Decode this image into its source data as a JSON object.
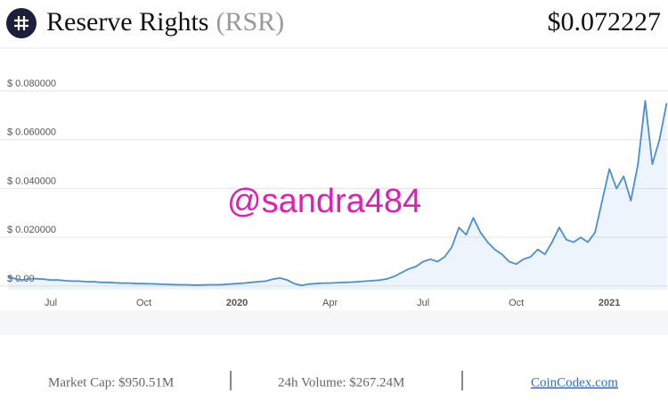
{
  "header": {
    "name": "Reserve Rights",
    "symbol": "(RSR)",
    "price": "$0.072227"
  },
  "chart_data": {
    "type": "line",
    "color": "#4a8fd4",
    "grid": true,
    "categories": [
      null,
      null,
      null,
      null,
      null,
      null,
      "Jul",
      null,
      null,
      null,
      null,
      null,
      null,
      null,
      null,
      null,
      null,
      null,
      null,
      "Oct",
      null,
      null,
      null,
      null,
      null,
      null,
      null,
      null,
      null,
      null,
      null,
      null,
      "2020",
      null,
      null,
      null,
      null,
      null,
      null,
      null,
      null,
      null,
      null,
      null,
      null,
      "Apr",
      null,
      null,
      null,
      null,
      null,
      null,
      null,
      null,
      null,
      null,
      null,
      null,
      "Jul",
      null,
      null,
      null,
      null,
      null,
      null,
      null,
      null,
      null,
      null,
      null,
      null,
      "Oct",
      null,
      null,
      null,
      null,
      null,
      null,
      null,
      null,
      null,
      null,
      null,
      null,
      "2021",
      null,
      null,
      null,
      null,
      null,
      null,
      null,
      null
    ],
    "values": [
      0.004,
      0.003,
      0.0025,
      0.003,
      0.003,
      0.0028,
      0.0025,
      0.0025,
      0.0022,
      0.002,
      0.002,
      0.0018,
      0.0018,
      0.0015,
      0.0015,
      0.0013,
      0.0012,
      0.0012,
      0.001,
      0.001,
      0.0009,
      0.0008,
      0.0007,
      0.0006,
      0.0005,
      0.0005,
      0.0004,
      0.0004,
      0.0005,
      0.0005,
      0.0006,
      0.0008,
      0.001,
      0.0012,
      0.0015,
      0.0018,
      0.002,
      0.0028,
      0.0033,
      0.0025,
      0.001,
      0.0003,
      0.0008,
      0.001,
      0.0012,
      0.0012,
      0.0014,
      0.0015,
      0.0016,
      0.0018,
      0.002,
      0.0022,
      0.0025,
      0.003,
      0.004,
      0.0055,
      0.007,
      0.008,
      0.01,
      0.011,
      0.01,
      0.012,
      0.016,
      0.024,
      0.021,
      0.028,
      0.022,
      0.018,
      0.015,
      0.013,
      0.01,
      0.009,
      0.011,
      0.012,
      0.015,
      0.013,
      0.018,
      0.024,
      0.019,
      0.018,
      0.02,
      0.018,
      0.022,
      0.035,
      0.048,
      0.04,
      0.045,
      0.035,
      0.05,
      0.076,
      0.05,
      0.06,
      0.075
    ],
    "ylim": [
      -0.0015,
      0.095
    ],
    "yticks": [
      {
        "value": 0,
        "label": "$ 0.00"
      },
      {
        "value": 0.02,
        "label": "$ 0.020000"
      },
      {
        "value": 0.04,
        "label": "$ 0.040000"
      },
      {
        "value": 0.06,
        "label": "$ 0.060000"
      },
      {
        "value": 0.08,
        "label": "$ 0.080000"
      }
    ],
    "annotation": "@sandra484"
  },
  "footer": {
    "market_cap": "Market Cap: $950.51M",
    "volume": "24h Volume: $267.24M",
    "source": "CoinCodex.com"
  }
}
